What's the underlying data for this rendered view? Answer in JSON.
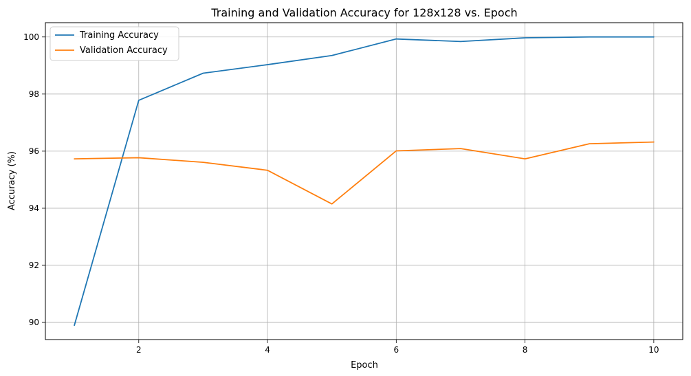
{
  "chart_data": {
    "type": "line",
    "title": "Training and Validation Accuracy for 128x128 vs. Epoch",
    "xlabel": "Epoch",
    "ylabel": "Accuracy (%)",
    "x": [
      1,
      2,
      3,
      4,
      5,
      6,
      7,
      8,
      9,
      10
    ],
    "series": [
      {
        "name": "Training Accuracy",
        "color": "#1f77b4",
        "values": [
          89.9,
          97.78,
          98.73,
          99.03,
          99.35,
          99.93,
          99.84,
          99.97,
          100.0,
          100.0
        ]
      },
      {
        "name": "Validation Accuracy",
        "color": "#ff7f0e",
        "values": [
          95.73,
          95.77,
          95.61,
          95.33,
          94.15,
          96.01,
          96.09,
          95.73,
          96.26,
          96.32
        ]
      }
    ],
    "xlim": [
      0.55,
      10.45
    ],
    "ylim": [
      89.4,
      100.5
    ],
    "xticks": [
      2,
      4,
      6,
      8,
      10
    ],
    "yticks": [
      90,
      92,
      94,
      96,
      98,
      100
    ],
    "grid": true,
    "legend_position": "top-left"
  }
}
